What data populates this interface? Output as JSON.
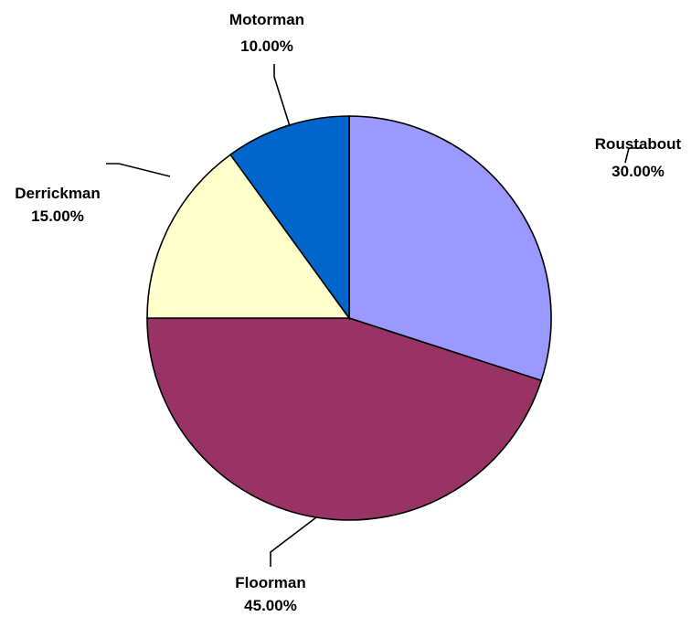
{
  "chart_data": {
    "type": "pie",
    "title": "",
    "legend": "none",
    "start_angle_deg": 0,
    "direction": "clockwise",
    "slices": [
      {
        "label": "Roustabout",
        "value": 30.0,
        "value_label": "30.00%",
        "color": "#9999FF"
      },
      {
        "label": "Floorman",
        "value": 45.0,
        "value_label": "45.00%",
        "color": "#993366"
      },
      {
        "label": "Derrickman",
        "value": 15.0,
        "value_label": "15.00%",
        "color": "#FFFFCC"
      },
      {
        "label": "Motorman",
        "value": 10.0,
        "value_label": "10.00%",
        "color": "#0066CC"
      }
    ]
  }
}
